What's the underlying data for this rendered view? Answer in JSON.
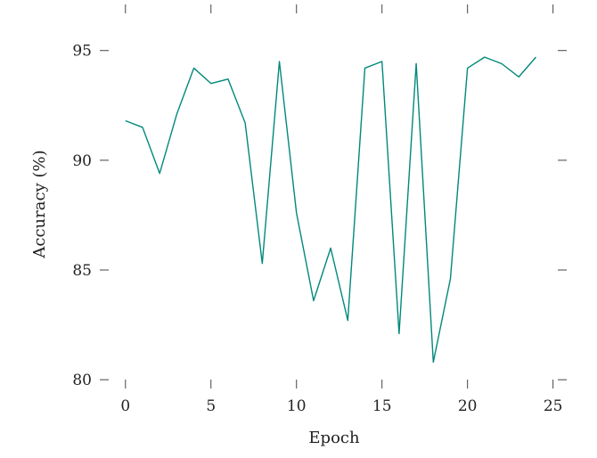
{
  "chart_data": {
    "type": "line",
    "title": "",
    "xlabel": "Epoch",
    "ylabel": "Accuracy (%)",
    "xlim": [
      -1.5,
      25.8
    ],
    "ylim": [
      79.6,
      97.1
    ],
    "xticks": [
      0,
      5,
      10,
      15,
      20,
      25
    ],
    "yticks": [
      80,
      85,
      90,
      95
    ],
    "grid": false,
    "legend": "none",
    "series": [
      {
        "color": "#00897b",
        "x": [
          0,
          1,
          2,
          3,
          4,
          5,
          6,
          7,
          8,
          9,
          10,
          11,
          12,
          13,
          14,
          15,
          16,
          17,
          18,
          19,
          20,
          21,
          22,
          23,
          24
        ],
        "y": [
          91.8,
          91.5,
          89.4,
          92.1,
          94.2,
          93.5,
          93.7,
          91.7,
          85.3,
          94.5,
          87.6,
          83.6,
          86.0,
          82.7,
          94.2,
          94.5,
          82.1,
          94.4,
          80.8,
          84.6,
          94.2,
          94.7,
          94.4,
          93.8,
          94.7
        ]
      }
    ]
  }
}
